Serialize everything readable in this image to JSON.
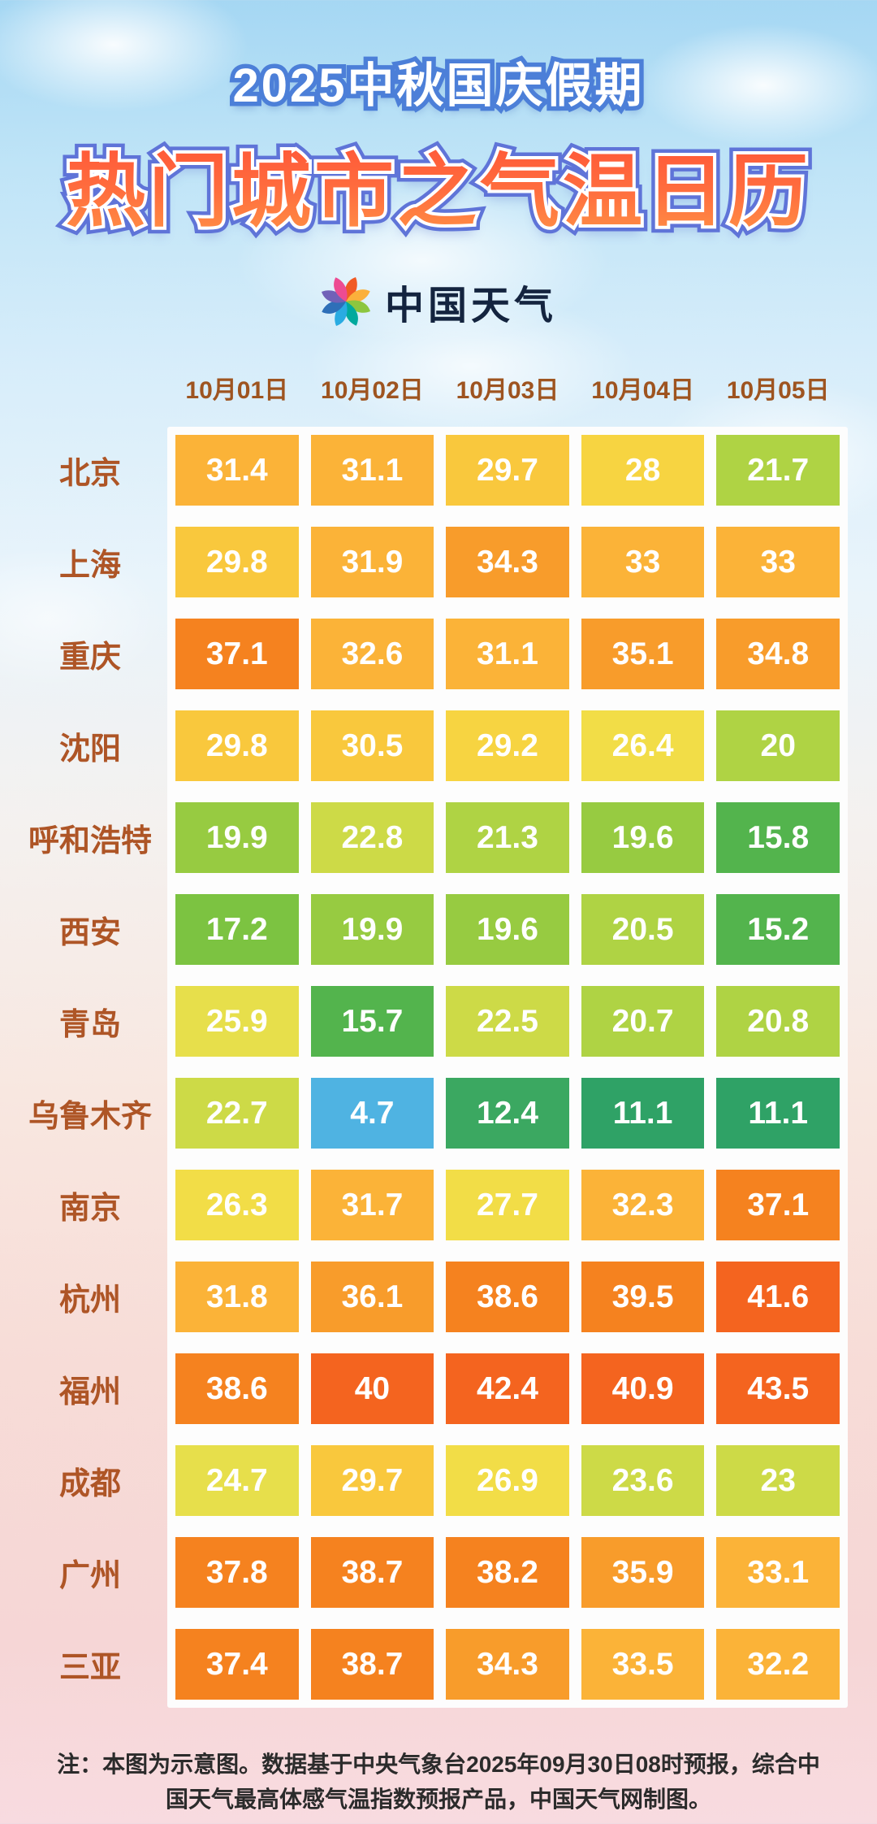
{
  "header": {
    "title_line1": "2025中秋国庆假期",
    "title_line2": "热门城市之气温日历",
    "logo_text": "中国天气"
  },
  "footer": {
    "note": "注：本图为示意图。数据基于中央气象台2025年09月30日08时预报，综合中国天气最高体感气温指数预报产品，中国天气网制图。"
  },
  "logo_petal_colors": [
    "#f15a24",
    "#fbb03b",
    "#8cc63f",
    "#00a99d",
    "#29abe2",
    "#2e6fb8",
    "#7161b8",
    "#ed4b92"
  ],
  "chart_data": {
    "type": "heatmap",
    "title": "2025中秋国庆假期 热门城市之气温日历",
    "columns": [
      "10月01日",
      "10月02日",
      "10月03日",
      "10月04日",
      "10月05日"
    ],
    "rows": [
      "北京",
      "上海",
      "重庆",
      "沈阳",
      "呼和浩特",
      "西安",
      "青岛",
      "乌鲁木齐",
      "南京",
      "杭州",
      "福州",
      "成都",
      "广州",
      "三亚"
    ],
    "values": [
      [
        31.4,
        31.1,
        29.7,
        28,
        21.7
      ],
      [
        29.8,
        31.9,
        34.3,
        33,
        33
      ],
      [
        37.1,
        32.6,
        31.1,
        35.1,
        34.8
      ],
      [
        29.8,
        30.5,
        29.2,
        26.4,
        20
      ],
      [
        19.9,
        22.8,
        21.3,
        19.6,
        15.8
      ],
      [
        17.2,
        19.9,
        19.6,
        20.5,
        15.2
      ],
      [
        25.9,
        15.7,
        22.5,
        20.7,
        20.8
      ],
      [
        22.7,
        4.7,
        12.4,
        11.1,
        11.1
      ],
      [
        26.3,
        31.7,
        27.7,
        32.3,
        37.1
      ],
      [
        31.8,
        36.1,
        38.6,
        39.5,
        41.6
      ],
      [
        38.6,
        40,
        42.4,
        40.9,
        43.5
      ],
      [
        24.7,
        29.7,
        26.9,
        23.6,
        23
      ],
      [
        37.8,
        38.7,
        38.2,
        35.9,
        33.1
      ],
      [
        37.4,
        38.7,
        34.3,
        33.5,
        32.2
      ]
    ],
    "color_scale": [
      {
        "min": 40,
        "color": "#f4641f"
      },
      {
        "min": 37,
        "color": "#f5821f"
      },
      {
        "min": 34,
        "color": "#f89c2b"
      },
      {
        "min": 31,
        "color": "#fbb338"
      },
      {
        "min": 29.5,
        "color": "#f9c83d"
      },
      {
        "min": 28,
        "color": "#f7d441"
      },
      {
        "min": 26,
        "color": "#f2dd47"
      },
      {
        "min": 24,
        "color": "#e7df4b"
      },
      {
        "min": 22,
        "color": "#cdda47"
      },
      {
        "min": 20,
        "color": "#afd344"
      },
      {
        "min": 19,
        "color": "#97cb41"
      },
      {
        "min": 17,
        "color": "#7cc341"
      },
      {
        "min": 15,
        "color": "#53b44d"
      },
      {
        "min": 12,
        "color": "#3ba861"
      },
      {
        "min": 5,
        "color": "#2fa266"
      },
      {
        "min": -100,
        "color": "#4fb3e2"
      }
    ]
  }
}
